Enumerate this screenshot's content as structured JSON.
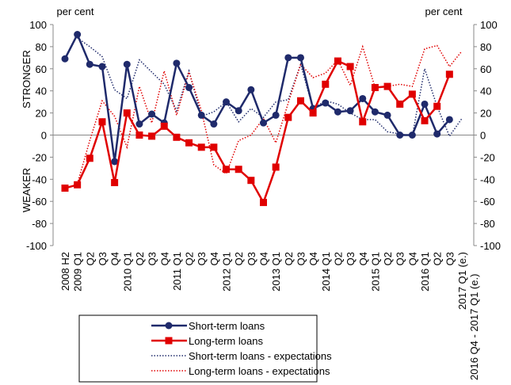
{
  "chart_data": {
    "type": "line",
    "y_unit": "per cent",
    "y2_unit": "per cent",
    "ylabel_top": "STRONGER",
    "ylabel_bottom": "WEAKER",
    "annotation": "2016 Q4 - 2017 Q1 (e.)",
    "categories": [
      "2008 H2",
      "2009 Q1",
      "Q2",
      "Q3",
      "Q4",
      "2010 Q1",
      "Q2",
      "Q3",
      "Q4",
      "2011 Q1",
      "Q2",
      "Q3",
      "Q4",
      "2012 Q1",
      "Q2",
      "Q3",
      "Q4",
      "2013 Q1",
      "Q2",
      "Q3",
      "Q4",
      "2014 Q1",
      "Q2",
      "Q3",
      "Q4",
      "2015 Q1",
      "Q2",
      "Q3",
      "Q4",
      "2016 Q1",
      "Q2",
      "Q3",
      "2017 Q1 (e.)"
    ],
    "series": [
      {
        "name": "Short-term loans",
        "color": "#1f2a6b",
        "marker": "circle",
        "dotted": false,
        "values": [
          69,
          91,
          64,
          62,
          -24,
          64,
          10,
          19,
          11,
          65,
          43,
          18,
          10,
          30,
          22,
          41,
          11,
          18,
          70,
          70,
          24,
          29,
          21,
          22,
          33,
          21,
          18,
          0,
          0,
          28,
          1,
          14,
          null
        ]
      },
      {
        "name": "Long-term loans",
        "color": "#e00000",
        "marker": "square",
        "dotted": false,
        "values": [
          -48,
          -45,
          -21,
          12,
          -43,
          20,
          0,
          -1,
          8,
          -2,
          -7,
          -11,
          -11,
          -31,
          -31,
          -41,
          -61,
          -29,
          16,
          31,
          20,
          46,
          67,
          62,
          12,
          43,
          44,
          28,
          37,
          13,
          26,
          55,
          null
        ]
      },
      {
        "name": "Short-term loans - expectations",
        "color": "#1f2a6b",
        "marker": null,
        "dotted": true,
        "values": [
          null,
          88,
          80,
          71,
          41,
          33,
          68,
          57,
          46,
          22,
          58,
          17,
          21,
          30,
          12,
          24,
          16,
          30,
          32,
          64,
          24,
          31,
          28,
          20,
          14,
          14,
          3,
          1,
          -1,
          60,
          26,
          -1,
          15
        ]
      },
      {
        "name": "Long-term loans - expectations",
        "color": "#e00000",
        "marker": null,
        "dotted": true,
        "values": [
          null,
          -44,
          -5,
          31,
          17,
          -11,
          44,
          11,
          58,
          18,
          57,
          22,
          -27,
          -35,
          -5,
          0,
          15,
          -7,
          29,
          64,
          52,
          56,
          68,
          45,
          80,
          43,
          44,
          46,
          44,
          78,
          81,
          62,
          76
        ]
      }
    ],
    "ylim": [
      -100,
      100
    ],
    "yticks": [
      -100,
      -80,
      -60,
      -40,
      -20,
      0,
      20,
      40,
      60,
      80,
      100
    ],
    "y2lim": [
      -100,
      100
    ],
    "y2ticks": [
      -100,
      -80,
      -60,
      -40,
      -20,
      0,
      20,
      40,
      60,
      80,
      100
    ]
  }
}
